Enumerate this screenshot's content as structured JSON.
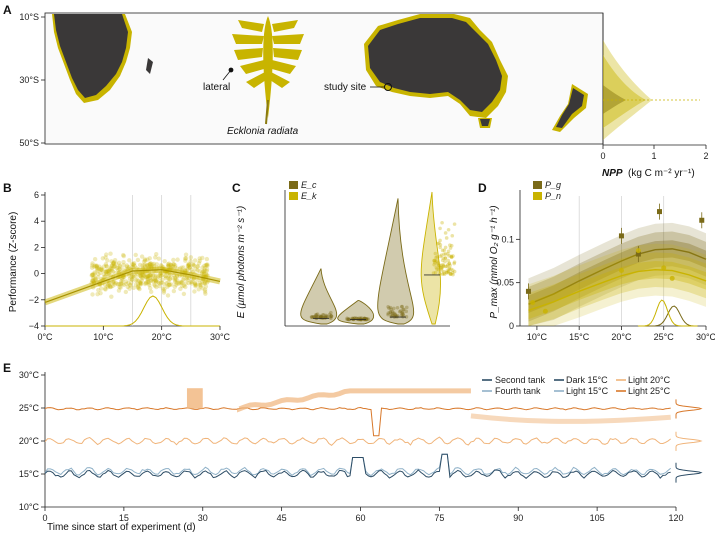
{
  "colors": {
    "land": "#3a3838",
    "kelp": "#c8b400",
    "kelp_dark": "#8a7a10",
    "olive": "#7a6a18",
    "gold": "#c9b300",
    "orange_dark": "#d8782a",
    "orange_light": "#f0b47a",
    "blue_dark": "#2d4d66",
    "blue_light": "#8fb1c8"
  },
  "panels": {
    "A": "A",
    "B": "B",
    "C": "C",
    "D": "D",
    "E": "E"
  },
  "panel_a": {
    "lat_labels": [
      "10°S",
      "30°S",
      "50°S"
    ],
    "labels": {
      "lateral": "lateral",
      "study_site": "study site",
      "species": "Ecklonia radiata"
    },
    "npp_ticks": [
      "0",
      "1",
      "2"
    ],
    "npp_title": "NPP",
    "npp_units": "(kg C m⁻² yr⁻¹)"
  },
  "chart_data": [
    {
      "id": "B",
      "type": "scatter",
      "xlabel": "",
      "ylabel": "Performance (Z-score)",
      "x_ticks": [
        "0°C",
        "10°C",
        "20°C",
        "30°C"
      ],
      "y_ticks": [
        "6",
        "4",
        "2",
        "0",
        "−2",
        "−4"
      ],
      "xlim": [
        0,
        30
      ],
      "ylim": [
        -4,
        6
      ],
      "vlines": [
        15,
        20,
        25
      ],
      "trend": {
        "x": [
          0,
          5,
          10,
          15,
          20,
          25,
          30
        ],
        "y": [
          -2.2,
          -1.4,
          -0.6,
          0.2,
          0.3,
          -0.1,
          -0.6
        ]
      },
      "cloud": {
        "x_range": [
          8,
          28
        ],
        "y_center": 0,
        "spread": 1.4
      },
      "density_peak_x": 18.5
    },
    {
      "id": "C",
      "type": "violin",
      "ylabel": "E (µmol photons m⁻² s⁻¹)",
      "legend": [
        "E_c",
        "E_k"
      ],
      "legend_sub": [
        "c",
        "k"
      ],
      "groups": [
        {
          "name": "E_c",
          "median": 12,
          "max": 90
        },
        {
          "name": "E_c",
          "median": 10,
          "max": 40
        },
        {
          "name": "E_c",
          "median": 14,
          "max": 200
        },
        {
          "name": "E_k",
          "median": 80,
          "max": 210
        }
      ]
    },
    {
      "id": "D",
      "type": "line",
      "ylabel": "P_max (mmol O₂ g⁻¹ h⁻¹)",
      "legend": [
        "P_g",
        "P_n"
      ],
      "x_ticks": [
        "10°C",
        "15°C",
        "20°C",
        "25°C",
        "30°C"
      ],
      "y_ticks": [
        "0.1",
        "0.05",
        "0"
      ],
      "xlim": [
        8,
        30
      ],
      "ylim": [
        0,
        0.15
      ],
      "series": [
        {
          "name": "P_g",
          "x": [
            9,
            12,
            15,
            18,
            20,
            22,
            24,
            26,
            28,
            30
          ],
          "y": [
            0.025,
            0.037,
            0.052,
            0.066,
            0.075,
            0.083,
            0.088,
            0.089,
            0.085,
            0.077
          ]
        },
        {
          "name": "P_n",
          "x": [
            9,
            12,
            15,
            18,
            20,
            22,
            24,
            26,
            28,
            30
          ],
          "y": [
            0.018,
            0.028,
            0.04,
            0.051,
            0.058,
            0.063,
            0.065,
            0.064,
            0.059,
            0.052
          ]
        }
      ],
      "points_g": {
        "x": [
          9,
          20,
          22,
          24.5,
          29.5
        ],
        "y": [
          0.04,
          0.104,
          0.083,
          0.132,
          0.122
        ]
      },
      "points_n": {
        "x": [
          9.5,
          11,
          20,
          22,
          25,
          26
        ],
        "y": [
          0.027,
          0.017,
          0.064,
          0.087,
          0.067,
          0.055
        ]
      }
    },
    {
      "id": "E",
      "type": "line",
      "xlabel": "Time since start of experiment (d)",
      "x_ticks": [
        "0",
        "15",
        "30",
        "45",
        "60",
        "75",
        "90",
        "105",
        "120"
      ],
      "y_ticks": [
        "30°C",
        "25°C",
        "20°C",
        "15°C",
        "10°C"
      ],
      "xlim": [
        0,
        120
      ],
      "ylim": [
        10,
        30
      ],
      "legend": [
        "Second tank",
        "Fourth tank",
        "Dark 15°C",
        "Light 15°C",
        "Light 20°C",
        "Light 25°C"
      ],
      "series_levels": [
        {
          "name": "Light 25°C",
          "level": 24.9
        },
        {
          "name": "Light 20°C",
          "level": 20.0
        },
        {
          "name": "Dark 15°C",
          "level": 15.0
        },
        {
          "name": "Light 15°C",
          "level": 15.4
        }
      ],
      "events": [
        {
          "x_start": 27,
          "x_end": 30,
          "level": 27.5
        },
        {
          "x_start": 37,
          "x_end": 81,
          "level": 27.5
        },
        {
          "x_start": 62,
          "x_end": 65,
          "level": 20.5
        }
      ]
    }
  ]
}
